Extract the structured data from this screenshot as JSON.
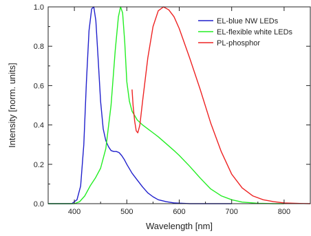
{
  "chart_data": {
    "type": "line",
    "title": "",
    "xlabel": "Wavelength [nm]",
    "ylabel": "Intensity [norm. units]",
    "xlim": [
      350,
      850
    ],
    "ylim": [
      0,
      1.0
    ],
    "x_ticks": [
      400,
      500,
      600,
      700,
      800
    ],
    "y_ticks": [
      0.0,
      0.2,
      0.4,
      0.6,
      0.8,
      1.0
    ],
    "x_tick_labels": [
      "400",
      "500",
      "600",
      "700",
      "800"
    ],
    "y_tick_labels": [
      "0.0",
      "0.2",
      "0.4",
      "0.6",
      "0.8",
      "1.0"
    ],
    "grid": false,
    "legend_position": "top-right",
    "series": [
      {
        "name": "EL-blue NW LEDs",
        "color": "#1f1fcc",
        "x": [
          350,
          395,
          405,
          412,
          418,
          423,
          428,
          433,
          437,
          441,
          445,
          450,
          455,
          460,
          465,
          470,
          475,
          480,
          485,
          490,
          495,
          500,
          510,
          520,
          530,
          540,
          550,
          560,
          575,
          590,
          620,
          660,
          700
        ],
        "y": [
          0,
          0,
          0.02,
          0.09,
          0.3,
          0.62,
          0.88,
          0.99,
          1.0,
          0.93,
          0.75,
          0.52,
          0.38,
          0.32,
          0.29,
          0.27,
          0.265,
          0.265,
          0.26,
          0.245,
          0.225,
          0.2,
          0.155,
          0.12,
          0.085,
          0.055,
          0.035,
          0.02,
          0.01,
          0.004,
          0,
          0,
          0
        ]
      },
      {
        "name": "EL-flexible white LEDs",
        "color": "#22ee22",
        "x": [
          350,
          400,
          410,
          420,
          430,
          440,
          450,
          460,
          470,
          478,
          484,
          488,
          492,
          496,
          500,
          505,
          510,
          520,
          530,
          540,
          550,
          560,
          575,
          590,
          600,
          620,
          640,
          660,
          680,
          700,
          720,
          750,
          780,
          800
        ],
        "y": [
          0,
          0,
          0.01,
          0.04,
          0.09,
          0.13,
          0.18,
          0.28,
          0.5,
          0.78,
          0.95,
          1.0,
          0.97,
          0.82,
          0.62,
          0.52,
          0.47,
          0.425,
          0.4,
          0.38,
          0.36,
          0.34,
          0.305,
          0.27,
          0.245,
          0.19,
          0.13,
          0.075,
          0.04,
          0.02,
          0.008,
          0.002,
          0,
          0
        ]
      },
      {
        "name": "PL-phosphor",
        "color": "#ee2222",
        "x": [
          510,
          512,
          515,
          518,
          521,
          525,
          530,
          540,
          550,
          560,
          570,
          580,
          590,
          600,
          620,
          640,
          660,
          680,
          700,
          720,
          740,
          760,
          780,
          800,
          830,
          850
        ],
        "y": [
          0.58,
          0.5,
          0.42,
          0.37,
          0.36,
          0.4,
          0.52,
          0.74,
          0.9,
          0.98,
          1.0,
          0.985,
          0.95,
          0.89,
          0.74,
          0.58,
          0.41,
          0.265,
          0.15,
          0.08,
          0.04,
          0.02,
          0.01,
          0.004,
          0.001,
          0
        ]
      }
    ]
  }
}
